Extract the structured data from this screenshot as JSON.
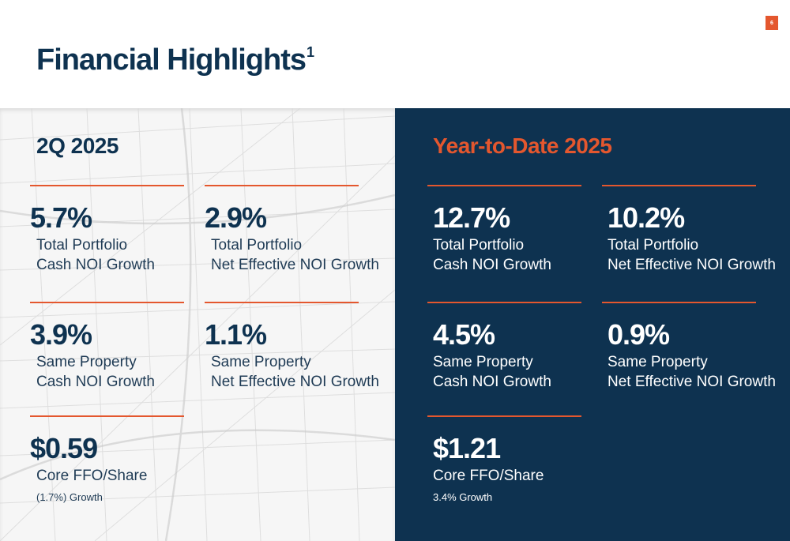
{
  "page_number": "6",
  "title": "Financial Highlights",
  "title_footnote": "1",
  "colors": {
    "navy": "#0e3250",
    "orange": "#e4572e",
    "light": "#f6f6f6"
  },
  "left_panel": {
    "heading": "2Q 2025",
    "metrics": [
      {
        "value": "5.7%",
        "line1": "Total Portfolio",
        "line2": "Cash NOI Growth"
      },
      {
        "value": "2.9%",
        "line1": "Total Portfolio",
        "line2": "Net Effective NOI Growth"
      },
      {
        "value": "3.9%",
        "line1": "Same Property",
        "line2": "Cash NOI Growth"
      },
      {
        "value": "1.1%",
        "line1": "Same Property",
        "line2": "Net Effective NOI Growth"
      },
      {
        "value": "$0.59",
        "line1": "Core FFO/Share",
        "note": "(1.7%) Growth"
      }
    ]
  },
  "right_panel": {
    "heading": "Year-to-Date 2025",
    "metrics": [
      {
        "value": "12.7%",
        "line1": "Total Portfolio",
        "line2": "Cash NOI Growth"
      },
      {
        "value": "10.2%",
        "line1": "Total Portfolio",
        "line2": "Net Effective NOI Growth"
      },
      {
        "value": "4.5%",
        "line1": "Same Property",
        "line2": "Cash NOI Growth"
      },
      {
        "value": "0.9%",
        "line1": "Same Property",
        "line2": "Net Effective NOI Growth"
      },
      {
        "value": "$1.21",
        "line1": "Core FFO/Share",
        "note": "3.4% Growth"
      }
    ]
  }
}
